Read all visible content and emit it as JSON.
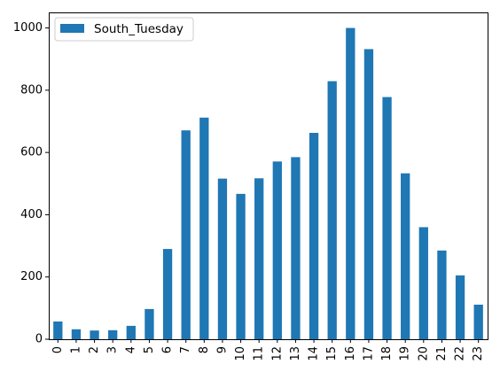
{
  "chart_data": {
    "type": "bar",
    "categories": [
      "0",
      "1",
      "2",
      "3",
      "4",
      "5",
      "6",
      "7",
      "8",
      "9",
      "10",
      "11",
      "12",
      "13",
      "14",
      "15",
      "16",
      "17",
      "18",
      "19",
      "20",
      "21",
      "22",
      "23"
    ],
    "series": [
      {
        "name": "South_Tuesday",
        "color": "#1f77b4",
        "values": [
          57,
          32,
          28,
          29,
          43,
          97,
          290,
          671,
          712,
          516,
          467,
          517,
          571,
          585,
          663,
          829,
          1000,
          932,
          778,
          533,
          360,
          285,
          205,
          111
        ]
      }
    ],
    "y_ticks": [
      0,
      200,
      400,
      600,
      800,
      1000
    ],
    "ylim": [
      0,
      1050
    ],
    "legend_position": "top-left",
    "grid": false,
    "title": "",
    "xlabel": "",
    "ylabel": ""
  }
}
